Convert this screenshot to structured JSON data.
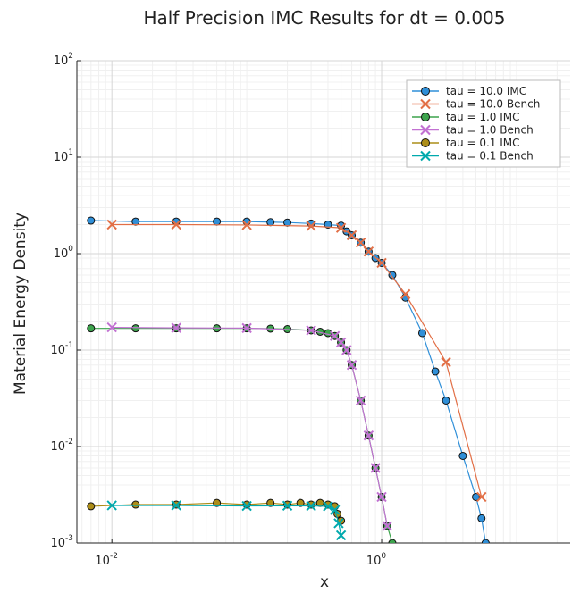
{
  "chart_data": {
    "type": "line",
    "title": "Half Precision IMC Results for dt = 0.005",
    "xlabel": "x",
    "ylabel": "Material Energy Density",
    "xscale": "log",
    "yscale": "log",
    "xlim": [
      0.0055,
      25
    ],
    "ylim": [
      0.001,
      100
    ],
    "x_ticks": [
      {
        "base": "10",
        "exp": "-2"
      },
      {
        "base": "10",
        "exp": "0"
      }
    ],
    "y_ticks": [
      {
        "base": "10",
        "exp": "-3"
      },
      {
        "base": "10",
        "exp": "-2"
      },
      {
        "base": "10",
        "exp": "-1"
      },
      {
        "base": "10",
        "exp": "0"
      },
      {
        "base": "10",
        "exp": "1"
      },
      {
        "base": "10",
        "exp": "2"
      }
    ],
    "grid": true,
    "legend_position": "top-right",
    "series": [
      {
        "name": "tau = 10.0 IMC",
        "color": "#2f8fd8",
        "marker": "circle",
        "x": [
          0.007,
          0.015,
          0.03,
          0.06,
          0.1,
          0.15,
          0.2,
          0.3,
          0.4,
          0.5,
          0.55,
          0.6,
          0.7,
          0.8,
          0.9,
          1.0,
          1.2,
          1.5,
          2.0,
          2.5,
          3.0,
          4.0,
          5.0,
          5.5,
          5.9
        ],
        "y": [
          2.2,
          2.15,
          2.15,
          2.15,
          2.15,
          2.12,
          2.1,
          2.05,
          2.0,
          1.95,
          1.7,
          1.55,
          1.3,
          1.05,
          0.9,
          0.8,
          0.6,
          0.35,
          0.15,
          0.06,
          0.03,
          0.008,
          0.003,
          0.0018,
          0.001
        ]
      },
      {
        "name": "tau = 10.0 Bench",
        "color": "#e26f46",
        "marker": "x",
        "x": [
          0.01,
          0.03,
          0.1,
          0.3,
          0.5,
          0.6,
          0.7,
          0.8,
          1.0,
          1.5,
          3.0,
          5.5
        ],
        "y": [
          2.0,
          2.0,
          1.98,
          1.93,
          1.85,
          1.55,
          1.3,
          1.05,
          0.8,
          0.38,
          0.075,
          0.003
        ]
      },
      {
        "name": "tau = 1.0 IMC",
        "color": "#3da44d",
        "marker": "circle",
        "x": [
          0.007,
          0.015,
          0.03,
          0.06,
          0.1,
          0.15,
          0.2,
          0.3,
          0.35,
          0.4,
          0.45,
          0.5,
          0.55,
          0.6,
          0.7,
          0.8,
          0.9,
          1.0,
          1.1,
          1.2
        ],
        "y": [
          0.168,
          0.168,
          0.168,
          0.168,
          0.168,
          0.167,
          0.165,
          0.16,
          0.155,
          0.15,
          0.14,
          0.12,
          0.1,
          0.07,
          0.03,
          0.013,
          0.006,
          0.003,
          0.0015,
          0.001
        ]
      },
      {
        "name": "tau = 1.0 Bench",
        "color": "#c271d2",
        "marker": "x",
        "x": [
          0.01,
          0.03,
          0.1,
          0.3,
          0.45,
          0.5,
          0.55,
          0.6,
          0.7,
          0.8,
          0.9,
          1.0,
          1.1
        ],
        "y": [
          0.172,
          0.17,
          0.169,
          0.16,
          0.14,
          0.12,
          0.1,
          0.07,
          0.03,
          0.013,
          0.006,
          0.003,
          0.0015
        ]
      },
      {
        "name": "tau = 0.1 IMC",
        "color": "#ac8d18",
        "marker": "circle",
        "x": [
          0.007,
          0.015,
          0.03,
          0.06,
          0.1,
          0.15,
          0.2,
          0.25,
          0.3,
          0.35,
          0.4,
          0.45,
          0.47,
          0.5
        ],
        "y": [
          0.0024,
          0.0025,
          0.0025,
          0.0026,
          0.0025,
          0.0026,
          0.0025,
          0.0026,
          0.0025,
          0.0026,
          0.0025,
          0.0024,
          0.002,
          0.0017
        ]
      },
      {
        "name": "tau = 0.1 Bench",
        "color": "#00a9ad",
        "marker": "x",
        "x": [
          0.01,
          0.03,
          0.1,
          0.2,
          0.3,
          0.4,
          0.45,
          0.48,
          0.5
        ],
        "y": [
          0.00245,
          0.00245,
          0.00242,
          0.00243,
          0.00242,
          0.0024,
          0.0022,
          0.0016,
          0.0012
        ]
      }
    ]
  }
}
